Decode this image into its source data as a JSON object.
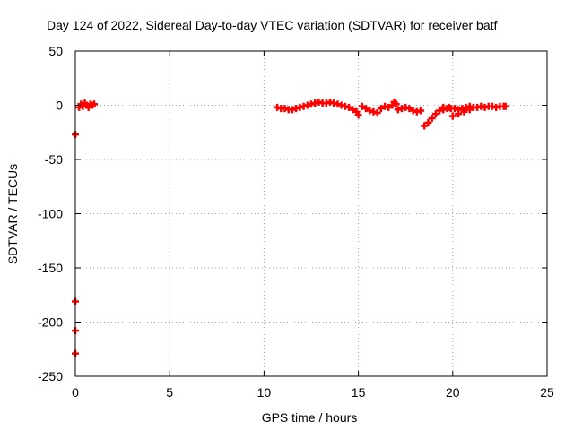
{
  "chart_data": {
    "type": "scatter",
    "title": "Day 124 of 2022, Sidereal Day-to-day VTEC variation (SDTVAR) for receiver batf",
    "xlabel": "GPS time / hours",
    "ylabel": "SDTVAR / TECUs",
    "xlim": [
      0,
      25
    ],
    "ylim": [
      -250,
      50
    ],
    "xticks": [
      0,
      5,
      10,
      15,
      20,
      25
    ],
    "yticks": [
      50,
      0,
      -50,
      -100,
      -150,
      -200,
      -250
    ],
    "grid": true,
    "legend": "none",
    "marker": "plus",
    "colors": {
      "series": "#ff0000",
      "grid": "#a0a0a0",
      "axes": "#000000"
    },
    "series": [
      {
        "points": [
          [
            0.0,
            -27
          ],
          [
            0.0,
            -181
          ],
          [
            0.0,
            -208
          ],
          [
            0.0,
            -229
          ],
          [
            0.2,
            -2
          ],
          [
            0.3,
            1
          ],
          [
            0.4,
            -1
          ],
          [
            0.5,
            2
          ],
          [
            0.6,
            0
          ],
          [
            0.7,
            -2
          ],
          [
            0.8,
            1
          ],
          [
            0.9,
            0
          ],
          [
            1.0,
            1
          ],
          [
            10.7,
            -2
          ],
          [
            10.9,
            -3
          ],
          [
            11.1,
            -3
          ],
          [
            11.3,
            -4
          ],
          [
            11.5,
            -4
          ],
          [
            11.7,
            -3
          ],
          [
            11.9,
            -2
          ],
          [
            12.1,
            -1
          ],
          [
            12.3,
            0
          ],
          [
            12.5,
            1
          ],
          [
            12.7,
            2
          ],
          [
            12.9,
            3
          ],
          [
            13.1,
            2
          ],
          [
            13.3,
            2
          ],
          [
            13.5,
            3
          ],
          [
            13.7,
            2
          ],
          [
            13.9,
            1
          ],
          [
            14.1,
            0
          ],
          [
            14.3,
            -1
          ],
          [
            14.5,
            -2
          ],
          [
            14.7,
            -4
          ],
          [
            14.9,
            -6
          ],
          [
            15.0,
            -9
          ],
          [
            15.2,
            -1
          ],
          [
            15.4,
            -3
          ],
          [
            15.6,
            -5
          ],
          [
            15.8,
            -6
          ],
          [
            16.0,
            -7
          ],
          [
            16.2,
            -3
          ],
          [
            16.4,
            -1
          ],
          [
            16.6,
            -2
          ],
          [
            16.8,
            0
          ],
          [
            16.9,
            3
          ],
          [
            17.0,
            1
          ],
          [
            17.1,
            -4
          ],
          [
            17.3,
            -3
          ],
          [
            17.5,
            -2
          ],
          [
            17.7,
            -3
          ],
          [
            17.9,
            -5
          ],
          [
            18.1,
            -6
          ],
          [
            18.3,
            -5
          ],
          [
            18.5,
            -19
          ],
          [
            18.7,
            -16
          ],
          [
            18.9,
            -12
          ],
          [
            19.1,
            -8
          ],
          [
            19.3,
            -5
          ],
          [
            19.5,
            -4
          ],
          [
            19.7,
            -3
          ],
          [
            19.9,
            -3
          ],
          [
            19.5,
            -2
          ],
          [
            19.8,
            -2
          ],
          [
            20.1,
            -3
          ],
          [
            20.3,
            -4
          ],
          [
            20.5,
            -3
          ],
          [
            20.7,
            -2
          ],
          [
            20.9,
            -1
          ],
          [
            20.0,
            -10
          ],
          [
            20.3,
            -8
          ],
          [
            20.6,
            -6
          ],
          [
            20.9,
            -4
          ],
          [
            21.1,
            -2
          ],
          [
            21.3,
            -2
          ],
          [
            21.5,
            -1
          ],
          [
            21.7,
            -2
          ],
          [
            21.9,
            -1
          ],
          [
            22.1,
            -1
          ],
          [
            22.3,
            -2
          ],
          [
            22.5,
            -1
          ],
          [
            22.7,
            -1
          ],
          [
            22.8,
            -1
          ]
        ]
      }
    ]
  }
}
